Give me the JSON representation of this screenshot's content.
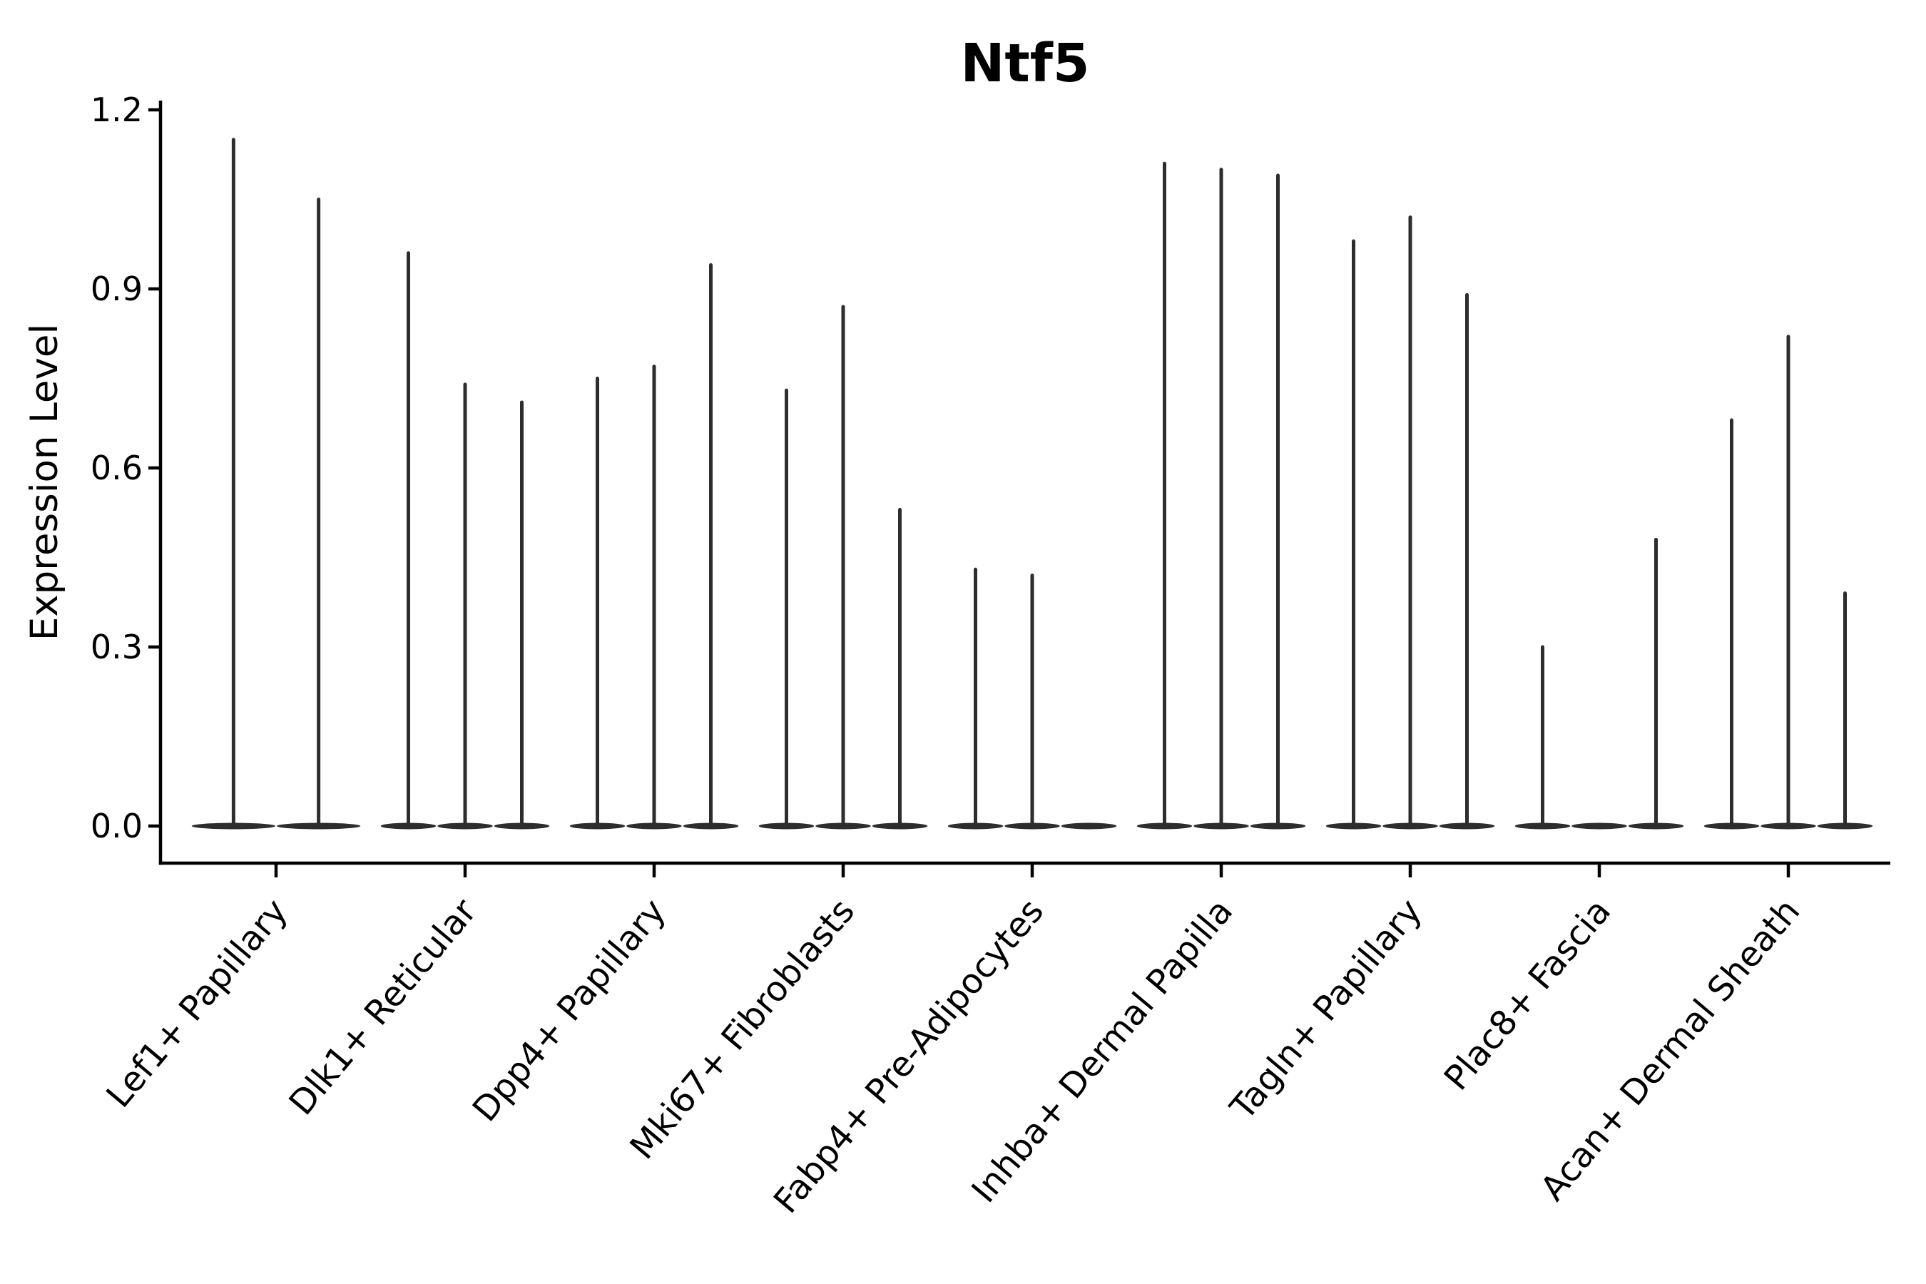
{
  "chart_data": {
    "type": "violin",
    "title": "Ntf5",
    "xlabel": "",
    "ylabel": "Expression Level",
    "grid": false,
    "legend": null,
    "background": "#ffffff",
    "violin_color": "#2d2d2d",
    "axis_color": "#000000",
    "ylim": [
      -0.06,
      1.22
    ],
    "y_tick_values": [
      0.0,
      0.3,
      0.6,
      0.9,
      1.2
    ],
    "y_tick_labels": [
      "0.0",
      "0.3",
      "0.6",
      "0.9",
      "1.2"
    ],
    "categories": [
      "Lef1+ Papillary",
      "Dlk1+ Reticular",
      "Dpp4+ Papillary",
      "Mki67+ Fibroblasts",
      "Fabp4+ Pre-Adipocytes",
      "Inhba+ Dermal Papilla",
      "Tagln+ Papillary",
      "Plac8+ Fascia",
      "Acan+ Dermal Sheath"
    ],
    "groups": [
      {
        "category": "Lef1+ Papillary",
        "violin_peaks": [
          1.15,
          1.05
        ]
      },
      {
        "category": "Dlk1+ Reticular",
        "violin_peaks": [
          0.96,
          0.74,
          0.71
        ]
      },
      {
        "category": "Dpp4+ Papillary",
        "violin_peaks": [
          0.75,
          0.77,
          0.94
        ]
      },
      {
        "category": "Mki67+ Fibroblasts",
        "violin_peaks": [
          0.73,
          0.87,
          0.53
        ]
      },
      {
        "category": "Fabp4+ Pre-Adipocytes",
        "violin_peaks": [
          0.43,
          0.42,
          0.0
        ]
      },
      {
        "category": "Inhba+ Dermal Papilla",
        "violin_peaks": [
          1.11,
          1.1,
          1.09
        ]
      },
      {
        "category": "Tagln+ Papillary",
        "violin_peaks": [
          0.98,
          1.02,
          0.89
        ]
      },
      {
        "category": "Plac8+ Fascia",
        "violin_peaks": [
          0.3,
          0.0,
          0.48
        ]
      },
      {
        "category": "Acan+ Dermal Sheath",
        "violin_peaks": [
          0.68,
          0.82,
          0.39
        ]
      }
    ]
  }
}
